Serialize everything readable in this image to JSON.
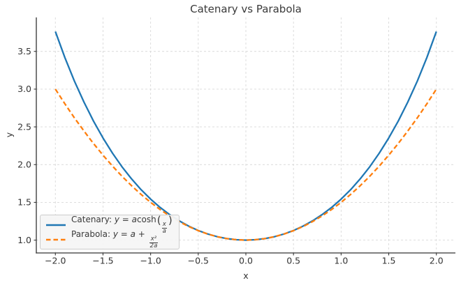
{
  "chart_data": {
    "type": "line",
    "title": "Catenary vs Parabola",
    "xlabel": "x",
    "ylabel": "y",
    "xlim": [
      -2.2,
      2.2
    ],
    "ylim": [
      0.83,
      3.95
    ],
    "xticks": [
      -2.0,
      -1.5,
      -1.0,
      -0.5,
      0.0,
      0.5,
      1.0,
      1.5,
      2.0
    ],
    "xtick_labels": [
      "−2.0",
      "−1.5",
      "−1.0",
      "−0.5",
      "0.0",
      "0.5",
      "1.0",
      "1.5",
      "2.0"
    ],
    "yticks": [
      1.0,
      1.5,
      2.0,
      2.5,
      3.0,
      3.5
    ],
    "ytick_labels": [
      "1.0",
      "1.5",
      "2.0",
      "2.5",
      "3.0",
      "3.5"
    ],
    "grid": true,
    "grid_style": "dashed",
    "legend_position": "lower left",
    "x": [
      -2.0,
      -1.9,
      -1.8,
      -1.7,
      -1.6,
      -1.5,
      -1.4,
      -1.3,
      -1.2,
      -1.1,
      -1.0,
      -0.9,
      -0.8,
      -0.7,
      -0.6,
      -0.5,
      -0.4,
      -0.3,
      -0.2,
      -0.1,
      0.0,
      0.1,
      0.2,
      0.3,
      0.4,
      0.5,
      0.6,
      0.7,
      0.8,
      0.9,
      1.0,
      1.1,
      1.2,
      1.3,
      1.4,
      1.5,
      1.6,
      1.7,
      1.8,
      1.9,
      2.0
    ],
    "series": [
      {
        "name": "Catenary: y = a cosh(x/a)",
        "color": "#1f77b4",
        "line_style": "solid",
        "line_width": 2.3,
        "values": [
          3.7622,
          3.4177,
          3.1075,
          2.8283,
          2.5775,
          2.3524,
          2.1509,
          1.9709,
          1.8107,
          1.6685,
          1.5431,
          1.4331,
          1.3374,
          1.2552,
          1.1855,
          1.1276,
          1.0811,
          1.0453,
          1.0201,
          1.005,
          1.0,
          1.005,
          1.0201,
          1.0453,
          1.0811,
          1.1276,
          1.1855,
          1.2552,
          1.3374,
          1.4331,
          1.5431,
          1.6685,
          1.8107,
          1.9709,
          2.1509,
          2.3524,
          2.5775,
          2.8283,
          3.1075,
          3.4177,
          3.7622
        ]
      },
      {
        "name": "Parabola: y = a + x²/(2a)",
        "color": "#ff7f0e",
        "line_style": "dashed",
        "line_width": 2.3,
        "values": [
          3.0,
          2.805,
          2.62,
          2.445,
          2.28,
          2.125,
          1.98,
          1.845,
          1.72,
          1.605,
          1.5,
          1.405,
          1.32,
          1.245,
          1.18,
          1.125,
          1.08,
          1.045,
          1.02,
          1.005,
          1.0,
          1.005,
          1.02,
          1.045,
          1.08,
          1.125,
          1.18,
          1.245,
          1.32,
          1.405,
          1.5,
          1.605,
          1.72,
          1.845,
          1.98,
          2.125,
          2.28,
          2.445,
          2.62,
          2.805,
          3.0
        ]
      }
    ]
  },
  "legend": {
    "items": [
      {
        "label": "Catenary: ",
        "math_pre": "y = a",
        "math_func": "cosh",
        "paren_open": "(",
        "frac_num": "x",
        "frac_den": "a",
        "paren_close": ")",
        "color": "#1f77b4",
        "dash": "solid"
      },
      {
        "label": "Parabola: ",
        "math_pre": "y = a + ",
        "math_func": "",
        "paren_open": "",
        "frac_num": "x²",
        "frac_den": "2a",
        "paren_close": "",
        "color": "#ff7f0e",
        "dash": "dashed"
      }
    ]
  },
  "colors": {
    "catenary": "#1f77b4",
    "parabola": "#ff7f0e",
    "grid": "#d9d9d9",
    "spine": "#333333",
    "tick_text": "#333333",
    "title_text": "#3a3a3a",
    "legend_bg": "#f5f5f5",
    "legend_border": "#cccccc",
    "background": "#ffffff"
  }
}
